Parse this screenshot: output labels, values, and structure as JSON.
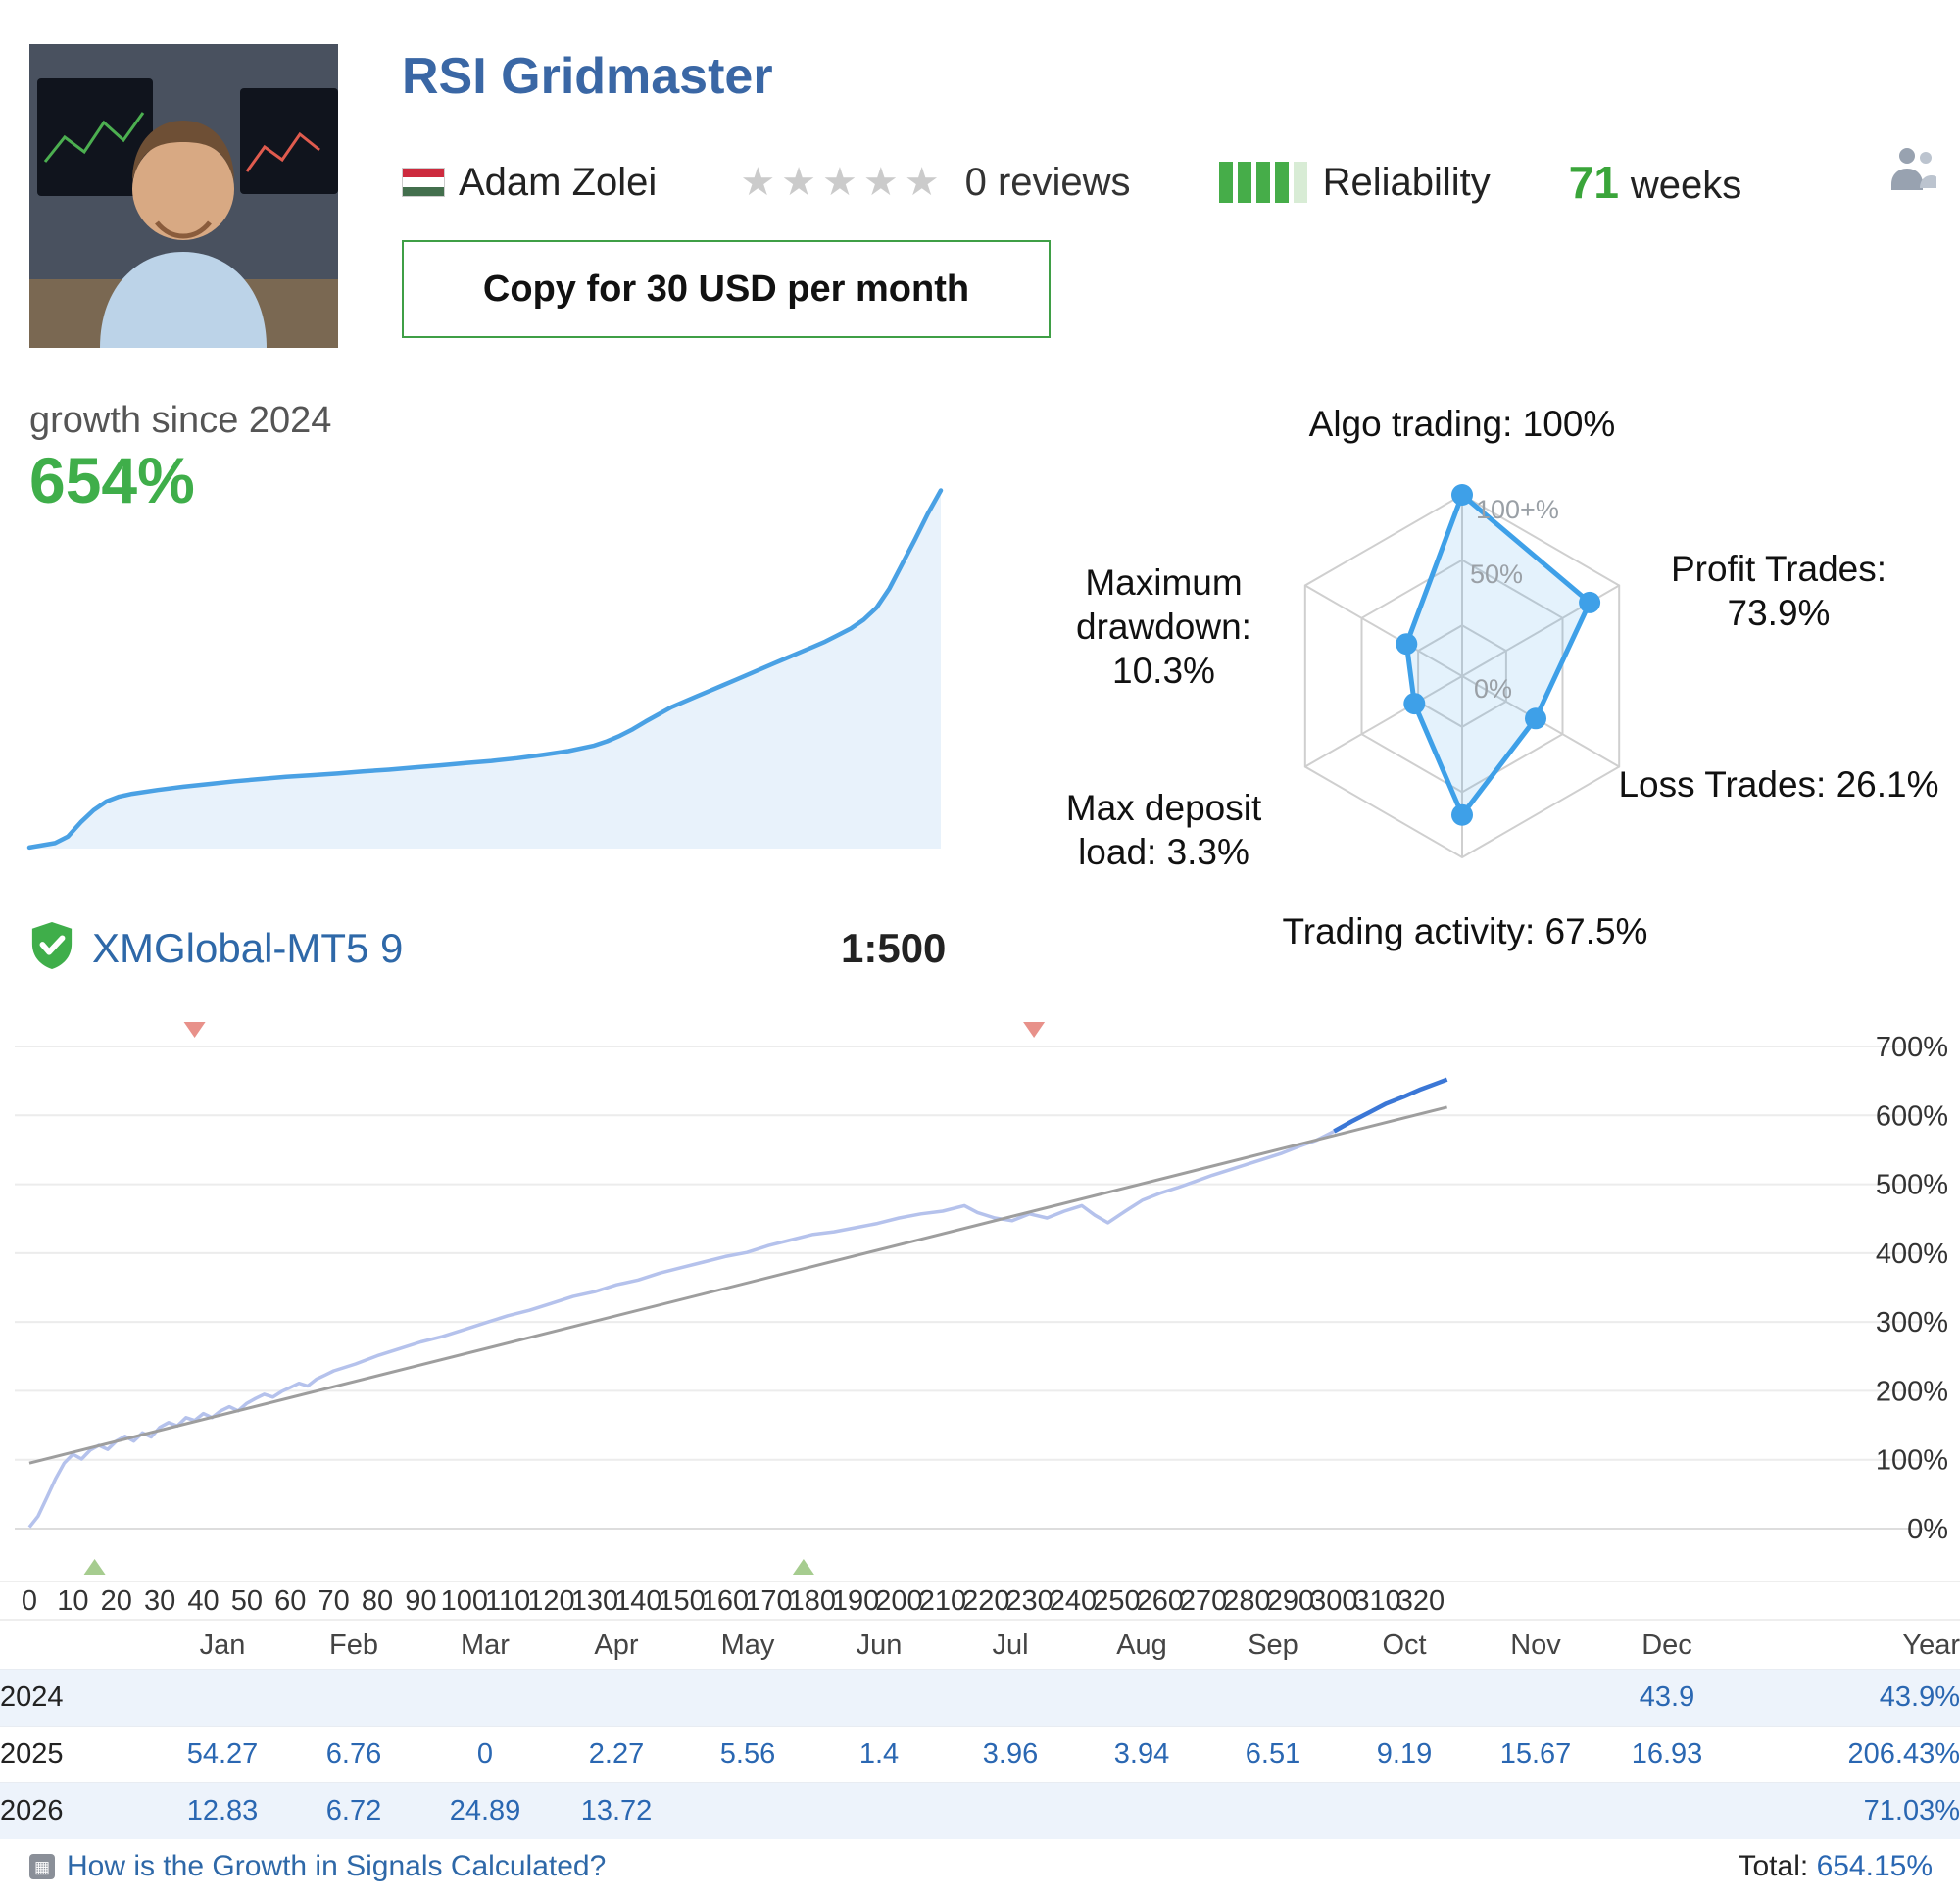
{
  "header": {
    "title": "RSI Gridmaster",
    "author": "Adam Zolei",
    "flag": "hungary-flag",
    "rating_stars": 5,
    "rating_filled": 0,
    "reviews": "0 reviews",
    "reliability": {
      "label": "Reliability",
      "filled": 4,
      "total": 5
    },
    "weeks_value": "71",
    "weeks_label": "weeks",
    "copy_button_label": "Copy for 30 USD per month"
  },
  "growth": {
    "label": "growth since 2024",
    "value": "654%"
  },
  "broker": {
    "name": "XMGlobal-MT5 9",
    "leverage": "1:500"
  },
  "footer": {
    "link_label": "How is the Growth in Signals Calculated?",
    "total_label": "Total:",
    "total_value": "654.15%"
  },
  "colors": {
    "accent_green": "#3fae4a",
    "title_blue": "#3a67a5",
    "link_blue": "#2a67b2",
    "spark_line": "#4aa1e4",
    "big_line": "#b5c2ec",
    "tail_blue": "#3b77d6",
    "trend_gray": "#9e9e9e",
    "radar_blue": "#3ea0e8"
  },
  "chart_data": [
    {
      "type": "area",
      "name": "growth-sparkline",
      "title": "growth since 2024",
      "xlim": [
        0,
        71
      ],
      "ylim": [
        0,
        680
      ],
      "points": [
        [
          0,
          2
        ],
        [
          2,
          10
        ],
        [
          3,
          22
        ],
        [
          4,
          48
        ],
        [
          5,
          70
        ],
        [
          6,
          86
        ],
        [
          7,
          95
        ],
        [
          8,
          100
        ],
        [
          10,
          107
        ],
        [
          12,
          113
        ],
        [
          14,
          118
        ],
        [
          16,
          123
        ],
        [
          18,
          127
        ],
        [
          20,
          131
        ],
        [
          22,
          134
        ],
        [
          24,
          137
        ],
        [
          26,
          141
        ],
        [
          28,
          144
        ],
        [
          30,
          148
        ],
        [
          32,
          152
        ],
        [
          34,
          156
        ],
        [
          36,
          160
        ],
        [
          38,
          165
        ],
        [
          40,
          171
        ],
        [
          42,
          178
        ],
        [
          44,
          188
        ],
        [
          45,
          196
        ],
        [
          46,
          206
        ],
        [
          47,
          218
        ],
        [
          48,
          232
        ],
        [
          49,
          245
        ],
        [
          50,
          258
        ],
        [
          51,
          268
        ],
        [
          52,
          278
        ],
        [
          53,
          288
        ],
        [
          54,
          298
        ],
        [
          55,
          308
        ],
        [
          56,
          318
        ],
        [
          57,
          328
        ],
        [
          58,
          338
        ],
        [
          59,
          348
        ],
        [
          60,
          358
        ],
        [
          61,
          368
        ],
        [
          62,
          378
        ],
        [
          63,
          390
        ],
        [
          64,
          402
        ],
        [
          65,
          418
        ],
        [
          66,
          440
        ],
        [
          67,
          475
        ],
        [
          68,
          520
        ],
        [
          69,
          565
        ],
        [
          70,
          612
        ],
        [
          71,
          654
        ]
      ]
    },
    {
      "type": "radar",
      "rings": [
        "100+%",
        "50%",
        "0%"
      ],
      "axes": [
        {
          "label": "Algo trading: 100%",
          "value": 100
        },
        {
          "label": "Profit Trades: 73.9%",
          "value": 73.9
        },
        {
          "label": "Loss Trades: 26.1%",
          "value": 26.1
        },
        {
          "label": "Trading activity: 67.5%",
          "value": 67.5
        },
        {
          "label": "Max deposit load: 3.3%",
          "value": 3.3
        },
        {
          "label": "Maximum drawdown: 10.3%",
          "value": 10.3
        }
      ]
    },
    {
      "type": "line",
      "name": "growth-history",
      "xlabel": "weeks",
      "xlim": [
        0,
        326
      ],
      "ylim": [
        0,
        700
      ],
      "x_ticks": [
        0,
        10,
        20,
        30,
        40,
        50,
        60,
        70,
        80,
        90,
        100,
        110,
        120,
        130,
        140,
        150,
        160,
        170,
        180,
        190,
        200,
        210,
        220,
        230,
        240,
        250,
        260,
        270,
        280,
        290,
        300,
        310,
        320
      ],
      "y_ticks": [
        0,
        100,
        200,
        300,
        400,
        500,
        600,
        700
      ],
      "series": [
        {
          "name": "growth",
          "points": [
            [
              0,
              2
            ],
            [
              2,
              18
            ],
            [
              4,
              45
            ],
            [
              6,
              72
            ],
            [
              8,
              95
            ],
            [
              10,
              108
            ],
            [
              12,
              101
            ],
            [
              14,
              114
            ],
            [
              16,
              121
            ],
            [
              18,
              115
            ],
            [
              20,
              127
            ],
            [
              22,
              134
            ],
            [
              24,
              127
            ],
            [
              26,
              139
            ],
            [
              28,
              133
            ],
            [
              30,
              147
            ],
            [
              32,
              154
            ],
            [
              34,
              149
            ],
            [
              36,
              161
            ],
            [
              38,
              157
            ],
            [
              40,
              167
            ],
            [
              42,
              161
            ],
            [
              44,
              171
            ],
            [
              46,
              177
            ],
            [
              48,
              171
            ],
            [
              50,
              182
            ],
            [
              52,
              189
            ],
            [
              54,
              195
            ],
            [
              56,
              191
            ],
            [
              58,
              199
            ],
            [
              60,
              205
            ],
            [
              62,
              211
            ],
            [
              64,
              207
            ],
            [
              66,
              217
            ],
            [
              68,
              223
            ],
            [
              70,
              229
            ],
            [
              75,
              239
            ],
            [
              80,
              251
            ],
            [
              85,
              261
            ],
            [
              90,
              271
            ],
            [
              95,
              279
            ],
            [
              100,
              289
            ],
            [
              105,
              299
            ],
            [
              110,
              309
            ],
            [
              115,
              317
            ],
            [
              120,
              327
            ],
            [
              125,
              337
            ],
            [
              130,
              344
            ],
            [
              135,
              354
            ],
            [
              140,
              361
            ],
            [
              145,
              371
            ],
            [
              150,
              379
            ],
            [
              155,
              387
            ],
            [
              160,
              395
            ],
            [
              165,
              401
            ],
            [
              170,
              411
            ],
            [
              175,
              419
            ],
            [
              180,
              427
            ],
            [
              185,
              431
            ],
            [
              190,
              437
            ],
            [
              195,
              443
            ],
            [
              200,
              451
            ],
            [
              205,
              457
            ],
            [
              210,
              461
            ],
            [
              215,
              469
            ],
            [
              218,
              459
            ],
            [
              222,
              451
            ],
            [
              226,
              447
            ],
            [
              230,
              457
            ],
            [
              234,
              451
            ],
            [
              238,
              461
            ],
            [
              242,
              469
            ],
            [
              245,
              455
            ],
            [
              248,
              444
            ],
            [
              252,
              461
            ],
            [
              256,
              477
            ],
            [
              260,
              487
            ],
            [
              264,
              495
            ],
            [
              268,
              504
            ],
            [
              272,
              513
            ],
            [
              276,
              521
            ],
            [
              280,
              529
            ],
            [
              284,
              537
            ],
            [
              288,
              545
            ],
            [
              292,
              555
            ],
            [
              296,
              564
            ],
            [
              300,
              577
            ],
            [
              304,
              591
            ],
            [
              308,
              604
            ],
            [
              312,
              617
            ],
            [
              316,
              627
            ],
            [
              320,
              638
            ],
            [
              323,
              645
            ],
            [
              326,
              652
            ]
          ]
        },
        {
          "name": "trend",
          "points": [
            [
              0,
              95
            ],
            [
              326,
              612
            ]
          ]
        }
      ],
      "markers": {
        "top_red_weeks": [
          38,
          231
        ],
        "bottom_green_weeks": [
          15,
          178
        ]
      }
    },
    {
      "type": "table",
      "columns": [
        "Jan",
        "Feb",
        "Mar",
        "Apr",
        "May",
        "Jun",
        "Jul",
        "Aug",
        "Sep",
        "Oct",
        "Nov",
        "Dec",
        "Year"
      ],
      "rows": [
        {
          "year": "2024",
          "monthly": [
            "",
            "",
            "",
            "",
            "",
            "",
            "",
            "",
            "",
            "",
            "",
            "43.9"
          ],
          "year_total": "43.9%"
        },
        {
          "year": "2025",
          "monthly": [
            "54.27",
            "6.76",
            "0",
            "2.27",
            "5.56",
            "1.4",
            "3.96",
            "3.94",
            "6.51",
            "9.19",
            "15.67",
            "16.93"
          ],
          "year_total": "206.43%"
        },
        {
          "year": "2026",
          "monthly": [
            "12.83",
            "6.72",
            "24.89",
            "13.72",
            "",
            "",
            "",
            "",
            "",
            "",
            "",
            ""
          ],
          "year_total": "71.03%"
        }
      ]
    }
  ]
}
